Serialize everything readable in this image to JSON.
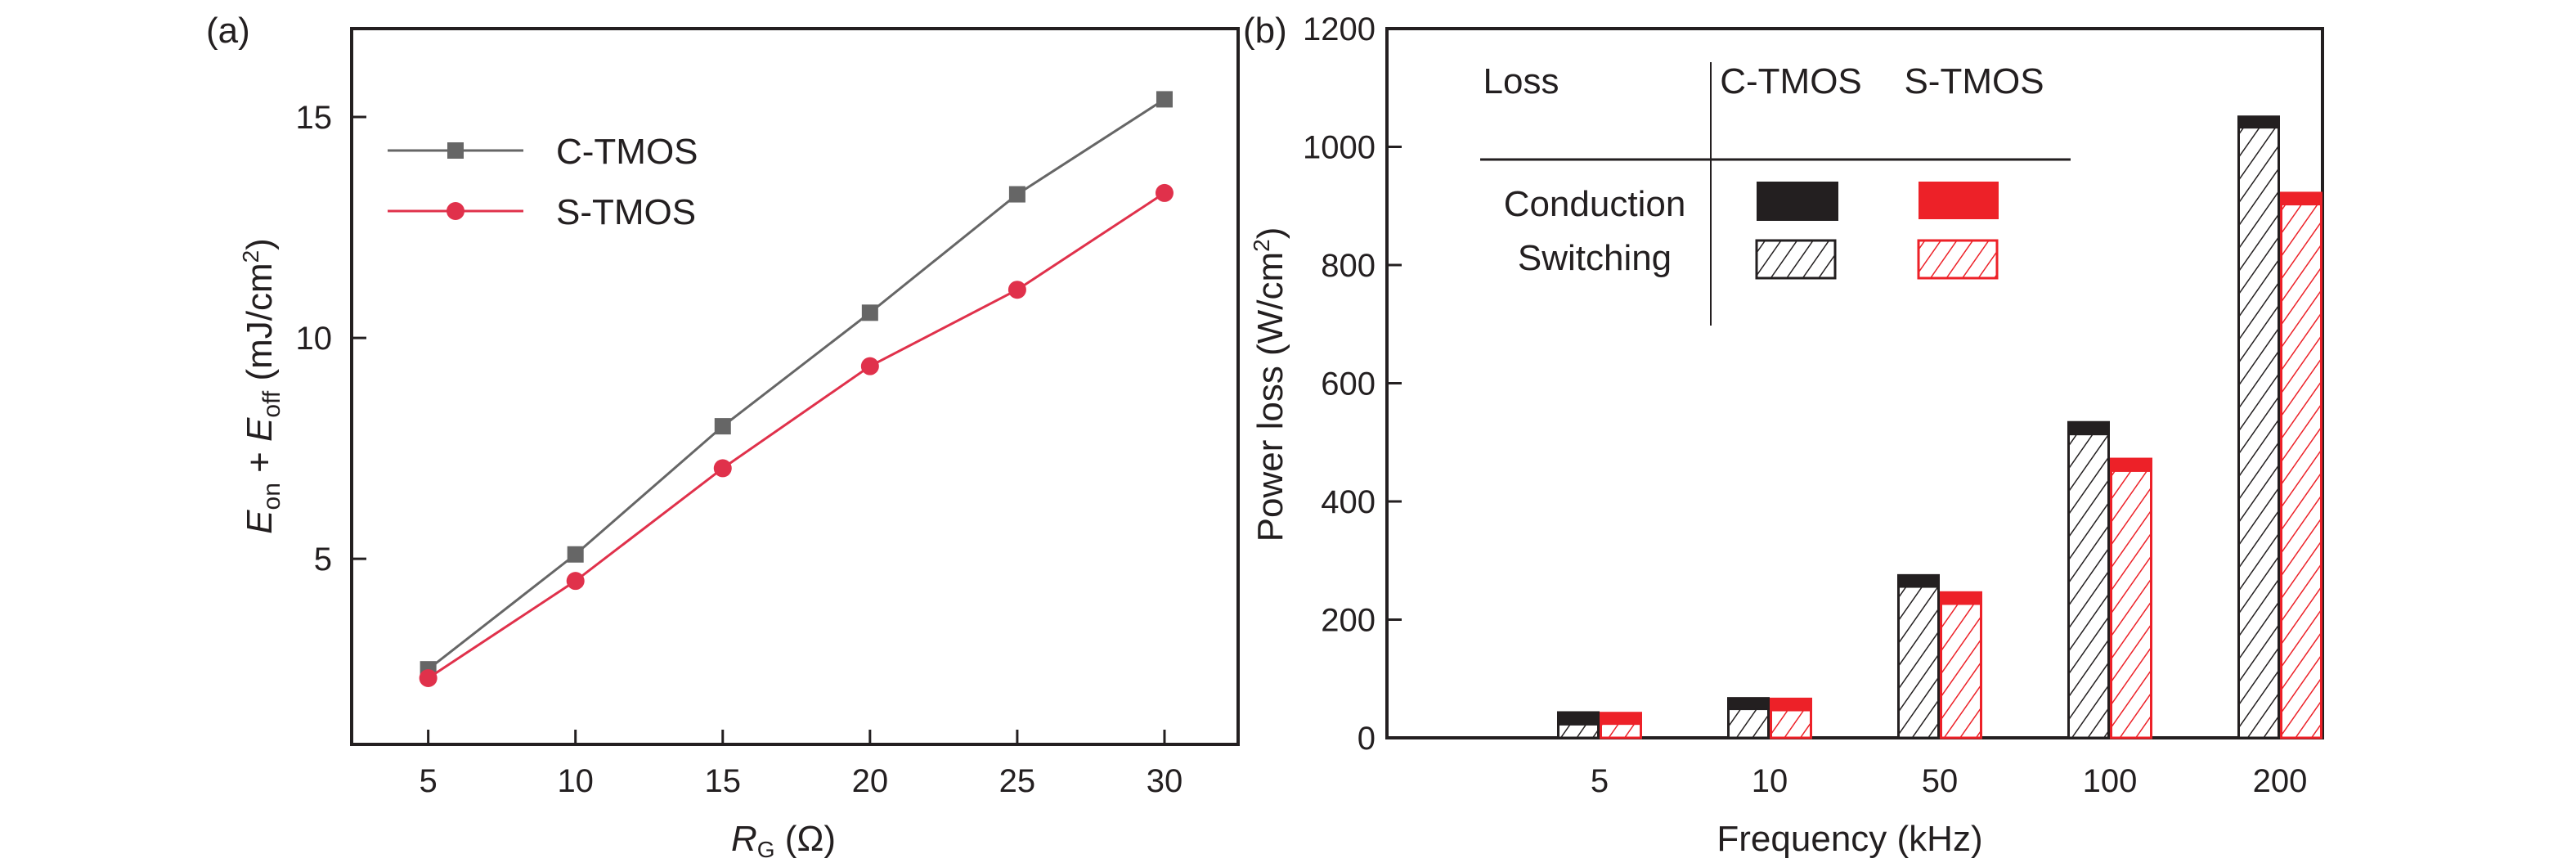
{
  "chart_data": [
    {
      "panel_label": "(a)",
      "type": "line",
      "x": [
        5,
        10,
        15,
        20,
        25,
        30
      ],
      "xticks": [
        "5",
        "10",
        "15",
        "20",
        "25",
        "30"
      ],
      "yticks": [
        "5",
        "10",
        "15"
      ],
      "xlim": [
        2.4,
        32.5
      ],
      "ylim": [
        0.8,
        17.0
      ],
      "xlabel": {
        "main": "R",
        "sub": "G",
        "rest": " (Ω)"
      },
      "ylabel": {
        "e1": "E",
        "s1": "on",
        "plus": " + ",
        "e2": "E",
        "s2": "off",
        "unit": " (mJ/cm",
        "sup": "2",
        "close": ")"
      },
      "legend_position": "top-left",
      "series": [
        {
          "name": "C-TMOS",
          "marker": "square",
          "color": "#666666",
          "values": [
            2.5,
            5.1,
            8.0,
            10.57,
            13.25,
            15.4
          ]
        },
        {
          "name": "S-TMOS",
          "marker": "circle",
          "color": "#e0314b",
          "values": [
            2.3,
            4.5,
            7.05,
            9.36,
            11.09,
            13.28
          ]
        }
      ]
    },
    {
      "panel_label": "(b)",
      "type": "bar",
      "stacked": true,
      "categories": [
        "5",
        "10",
        "50",
        "100",
        "200"
      ],
      "xlabel": "Frequency (kHz)",
      "ylabel": {
        "main": "Power loss (W/cm",
        "sup": "2",
        "close": ")"
      },
      "ylim": [
        0,
        1200
      ],
      "yticks": [
        "0",
        "200",
        "400",
        "600",
        "800",
        "1000",
        "1200"
      ],
      "legend": {
        "header": "Loss",
        "col1": "C-TMOS",
        "col2": "S-TMOS",
        "row1": "Conduction",
        "row2": "Switching",
        "position": "top-left"
      },
      "series": [
        {
          "name": "C-TMOS",
          "color": "#231f20",
          "switching": [
            23,
            49,
            256,
            514,
            1033
          ],
          "conduction": [
            22,
            20,
            21,
            22,
            20
          ]
        },
        {
          "name": "S-TMOS",
          "color": "#ed2128",
          "switching": [
            24,
            47,
            227,
            452,
            903
          ],
          "conduction": [
            20,
            21,
            21,
            22,
            21
          ]
        }
      ]
    }
  ]
}
